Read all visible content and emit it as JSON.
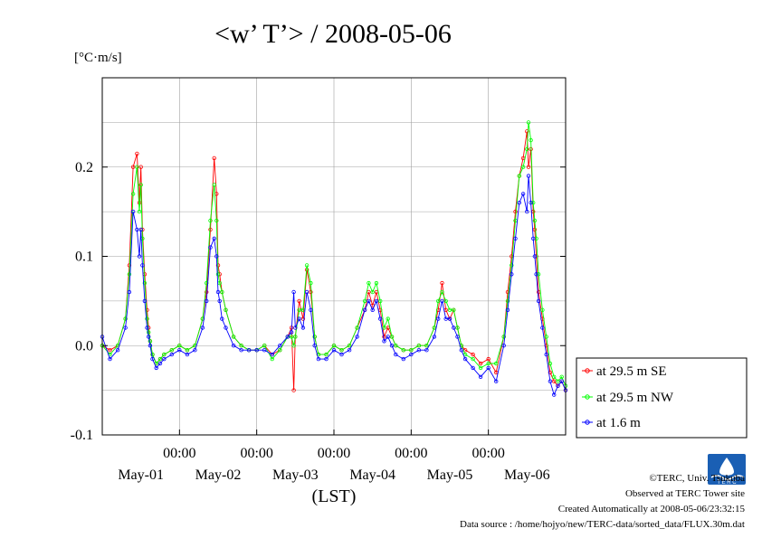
{
  "chart_data": {
    "type": "line",
    "title": "<w’ T’> / 2008-05-06",
    "units_label": "[°C·m/s]",
    "xlabel": "(LST)",
    "ylabel": "",
    "ylim": [
      -0.1,
      0.3
    ],
    "xlim": [
      0,
      6
    ],
    "grid": true,
    "legend_position": "right",
    "y_ticks": [
      {
        "value": 0.2,
        "label": "0.2"
      },
      {
        "value": 0.1,
        "label": "0.1"
      },
      {
        "value": 0.0,
        "label": "0.0"
      },
      {
        "value": -0.1,
        "label": "-0.1"
      }
    ],
    "x_ticks": [
      {
        "value": 1,
        "time_label": "00:00",
        "date_label": "May-01"
      },
      {
        "value": 2,
        "time_label": "00:00",
        "date_label": "May-02"
      },
      {
        "value": 3,
        "time_label": "00:00",
        "date_label": "May-03"
      },
      {
        "value": 4,
        "time_label": "00:00",
        "date_label": "May-04"
      },
      {
        "value": 5,
        "time_label": "00:00",
        "date_label": "May-05"
      }
    ],
    "x_date_labels": [
      {
        "value": 0.5,
        "label": "May-01"
      },
      {
        "value": 1.5,
        "label": "May-02"
      },
      {
        "value": 2.5,
        "label": "May-03"
      },
      {
        "value": 3.5,
        "label": "May-04"
      },
      {
        "value": 4.5,
        "label": "May-05"
      },
      {
        "value": 5.5,
        "label": "May-06"
      }
    ],
    "x_time_labels": [
      {
        "value": 1,
        "label": "00:00"
      },
      {
        "value": 2,
        "label": "00:00"
      },
      {
        "value": 3,
        "label": "00:00"
      },
      {
        "value": 4,
        "label": "00:00"
      },
      {
        "value": 5,
        "label": "00:00"
      }
    ],
    "series": [
      {
        "name": "at 29.5 m SE",
        "color": "#ff0000",
        "x": [
          0.0,
          0.1,
          0.2,
          0.3,
          0.35,
          0.4,
          0.45,
          0.48,
          0.5,
          0.52,
          0.55,
          0.58,
          0.6,
          0.62,
          0.65,
          0.7,
          0.75,
          0.8,
          0.9,
          1.0,
          1.1,
          1.2,
          1.3,
          1.35,
          1.4,
          1.45,
          1.48,
          1.5,
          1.52,
          1.55,
          1.6,
          1.7,
          1.8,
          1.9,
          2.0,
          2.1,
          2.2,
          2.3,
          2.4,
          2.45,
          2.48,
          2.5,
          2.55,
          2.6,
          2.65,
          2.7,
          2.75,
          2.8,
          2.9,
          3.0,
          3.1,
          3.2,
          3.3,
          3.4,
          3.45,
          3.5,
          3.55,
          3.6,
          3.65,
          3.7,
          3.75,
          3.8,
          3.9,
          4.0,
          4.1,
          4.2,
          4.3,
          4.35,
          4.4,
          4.45,
          4.5,
          4.55,
          4.6,
          4.65,
          4.7,
          4.8,
          4.9,
          5.0,
          5.1,
          5.2,
          5.25,
          5.3,
          5.35,
          5.4,
          5.45,
          5.5,
          5.52,
          5.55,
          5.58,
          5.6,
          5.62,
          5.65,
          5.7,
          5.75,
          5.8,
          5.85,
          5.9,
          5.95,
          6.0
        ],
        "values": [
          0.0,
          -0.005,
          0.0,
          0.03,
          0.09,
          0.2,
          0.215,
          0.16,
          0.2,
          0.13,
          0.08,
          0.04,
          0.02,
          0.005,
          -0.01,
          -0.02,
          -0.015,
          -0.01,
          -0.005,
          0.0,
          -0.005,
          0.0,
          0.03,
          0.06,
          0.13,
          0.21,
          0.17,
          0.09,
          0.08,
          0.06,
          0.04,
          0.01,
          0.0,
          -0.005,
          -0.005,
          0.0,
          -0.01,
          -0.005,
          0.01,
          0.02,
          -0.05,
          0.01,
          0.05,
          0.03,
          0.085,
          0.06,
          0.01,
          -0.01,
          -0.01,
          0.0,
          -0.005,
          0.0,
          0.02,
          0.04,
          0.06,
          0.045,
          0.06,
          0.04,
          0.01,
          0.02,
          0.01,
          0.0,
          -0.005,
          -0.005,
          0.0,
          0.0,
          0.02,
          0.04,
          0.07,
          0.04,
          0.03,
          0.04,
          0.02,
          0.0,
          -0.005,
          -0.01,
          -0.02,
          -0.015,
          -0.03,
          0.01,
          0.06,
          0.1,
          0.15,
          0.19,
          0.21,
          0.24,
          0.2,
          0.22,
          0.15,
          0.13,
          0.1,
          0.06,
          0.03,
          0.0,
          -0.03,
          -0.04,
          -0.045,
          -0.04,
          -0.05
        ]
      },
      {
        "name": "at 29.5 m NW",
        "color": "#00ff00",
        "x": [
          0.0,
          0.1,
          0.2,
          0.3,
          0.35,
          0.4,
          0.45,
          0.48,
          0.5,
          0.52,
          0.55,
          0.58,
          0.6,
          0.62,
          0.65,
          0.7,
          0.75,
          0.8,
          0.9,
          1.0,
          1.1,
          1.2,
          1.3,
          1.35,
          1.4,
          1.45,
          1.48,
          1.5,
          1.52,
          1.55,
          1.6,
          1.7,
          1.8,
          1.9,
          2.0,
          2.1,
          2.2,
          2.3,
          2.4,
          2.45,
          2.48,
          2.5,
          2.55,
          2.6,
          2.65,
          2.7,
          2.75,
          2.8,
          2.9,
          3.0,
          3.1,
          3.2,
          3.3,
          3.4,
          3.45,
          3.5,
          3.55,
          3.6,
          3.65,
          3.7,
          3.75,
          3.8,
          3.9,
          4.0,
          4.1,
          4.2,
          4.3,
          4.35,
          4.4,
          4.45,
          4.5,
          4.55,
          4.6,
          4.65,
          4.7,
          4.8,
          4.9,
          5.0,
          5.1,
          5.2,
          5.25,
          5.3,
          5.35,
          5.4,
          5.45,
          5.5,
          5.52,
          5.55,
          5.58,
          5.6,
          5.62,
          5.65,
          5.7,
          5.75,
          5.8,
          5.85,
          5.9,
          5.95,
          6.0
        ],
        "values": [
          0.0,
          -0.01,
          0.0,
          0.03,
          0.08,
          0.17,
          0.2,
          0.15,
          0.18,
          0.12,
          0.07,
          0.03,
          0.015,
          0.005,
          -0.01,
          -0.02,
          -0.015,
          -0.01,
          -0.005,
          0.0,
          -0.005,
          0.0,
          0.03,
          0.07,
          0.14,
          0.18,
          0.14,
          0.08,
          0.07,
          0.06,
          0.04,
          0.01,
          0.0,
          -0.005,
          -0.005,
          0.0,
          -0.015,
          -0.005,
          0.01,
          0.01,
          0.0,
          0.01,
          0.04,
          0.04,
          0.09,
          0.07,
          0.01,
          -0.01,
          -0.01,
          0.0,
          -0.005,
          0.0,
          0.02,
          0.05,
          0.07,
          0.06,
          0.07,
          0.05,
          0.02,
          0.03,
          0.01,
          0.0,
          -0.005,
          -0.005,
          0.0,
          0.0,
          0.02,
          0.05,
          0.06,
          0.05,
          0.04,
          0.04,
          0.02,
          0.0,
          -0.01,
          -0.015,
          -0.025,
          -0.02,
          -0.02,
          0.01,
          0.05,
          0.09,
          0.14,
          0.19,
          0.2,
          0.22,
          0.25,
          0.23,
          0.16,
          0.14,
          0.12,
          0.08,
          0.04,
          0.01,
          -0.02,
          -0.035,
          -0.04,
          -0.035,
          -0.045
        ]
      },
      {
        "name": "at 1.6 m",
        "color": "#0000ff",
        "x": [
          0.0,
          0.1,
          0.2,
          0.3,
          0.35,
          0.4,
          0.45,
          0.48,
          0.5,
          0.52,
          0.55,
          0.58,
          0.6,
          0.62,
          0.65,
          0.7,
          0.75,
          0.8,
          0.9,
          1.0,
          1.1,
          1.2,
          1.3,
          1.35,
          1.4,
          1.45,
          1.48,
          1.5,
          1.52,
          1.55,
          1.6,
          1.7,
          1.8,
          1.9,
          2.0,
          2.1,
          2.2,
          2.3,
          2.4,
          2.45,
          2.48,
          2.5,
          2.55,
          2.6,
          2.65,
          2.7,
          2.75,
          2.8,
          2.9,
          3.0,
          3.1,
          3.2,
          3.3,
          3.4,
          3.45,
          3.5,
          3.55,
          3.6,
          3.65,
          3.7,
          3.75,
          3.8,
          3.9,
          4.0,
          4.1,
          4.2,
          4.3,
          4.35,
          4.4,
          4.45,
          4.5,
          4.55,
          4.6,
          4.65,
          4.7,
          4.8,
          4.9,
          5.0,
          5.1,
          5.2,
          5.25,
          5.3,
          5.35,
          5.4,
          5.45,
          5.5,
          5.52,
          5.55,
          5.58,
          5.6,
          5.62,
          5.65,
          5.7,
          5.75,
          5.8,
          5.85,
          5.9,
          5.95,
          6.0
        ],
        "values": [
          0.01,
          -0.015,
          -0.005,
          0.02,
          0.06,
          0.15,
          0.13,
          0.1,
          0.13,
          0.09,
          0.05,
          0.02,
          0.01,
          0.0,
          -0.015,
          -0.025,
          -0.02,
          -0.015,
          -0.01,
          -0.005,
          -0.01,
          -0.005,
          0.02,
          0.05,
          0.11,
          0.12,
          0.1,
          0.06,
          0.05,
          0.03,
          0.02,
          0.0,
          -0.005,
          -0.005,
          -0.005,
          -0.005,
          -0.01,
          0.0,
          0.01,
          0.015,
          0.06,
          0.02,
          0.03,
          0.02,
          0.06,
          0.04,
          0.0,
          -0.015,
          -0.015,
          -0.005,
          -0.01,
          -0.005,
          0.01,
          0.04,
          0.05,
          0.04,
          0.05,
          0.03,
          0.005,
          0.01,
          0.0,
          -0.01,
          -0.015,
          -0.01,
          -0.005,
          -0.005,
          0.01,
          0.03,
          0.05,
          0.03,
          0.03,
          0.02,
          0.01,
          -0.005,
          -0.015,
          -0.025,
          -0.035,
          -0.025,
          -0.04,
          0.0,
          0.04,
          0.08,
          0.12,
          0.16,
          0.17,
          0.15,
          0.19,
          0.16,
          0.12,
          0.1,
          0.08,
          0.05,
          0.02,
          -0.01,
          -0.04,
          -0.055,
          -0.045,
          -0.04,
          -0.05
        ]
      }
    ]
  },
  "credits": {
    "copyright": "©TERC, Univ. Tsukuba",
    "observed": "Observed at TERC Tower site",
    "created": "Created Automatically at 2008-05-06/23:32:15",
    "source": "Data source : /home/hojyo/new/TERC-data/sorted_data/FLUX.30m.dat",
    "logo_text": "T E R C"
  }
}
